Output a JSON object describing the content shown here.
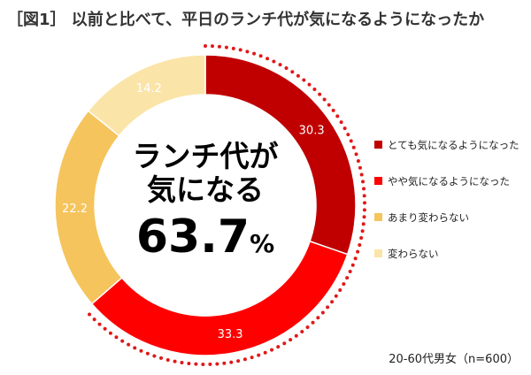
{
  "title": "［図1］ 以前と比べて、平日のランチ代が気になるようになったか",
  "center_label": {
    "line1": "ランチ代が",
    "line2": "気になる",
    "value": "63.7",
    "unit": "%"
  },
  "note": "20-60代男女（n=600）",
  "colors": {
    "dark_red": "#C00000",
    "red": "#FF0000",
    "orange": "#F5C45C",
    "light": "#FBE4A8",
    "dotted_bracket": "#E01818"
  },
  "chart_data": {
    "type": "pie",
    "variant": "donut",
    "unit": "%",
    "legend_position": "right",
    "slices": [
      {
        "label": "とても気になるようになった",
        "value": 30.3,
        "color": "#C00000"
      },
      {
        "label": "やや気になるようになった",
        "value": 33.3,
        "color": "#FF0000"
      },
      {
        "label": "あまり変わらない",
        "value": 22.2,
        "color": "#F5C45C"
      },
      {
        "label": "変わらない",
        "value": 14.2,
        "color": "#FBE4A8"
      }
    ]
  }
}
